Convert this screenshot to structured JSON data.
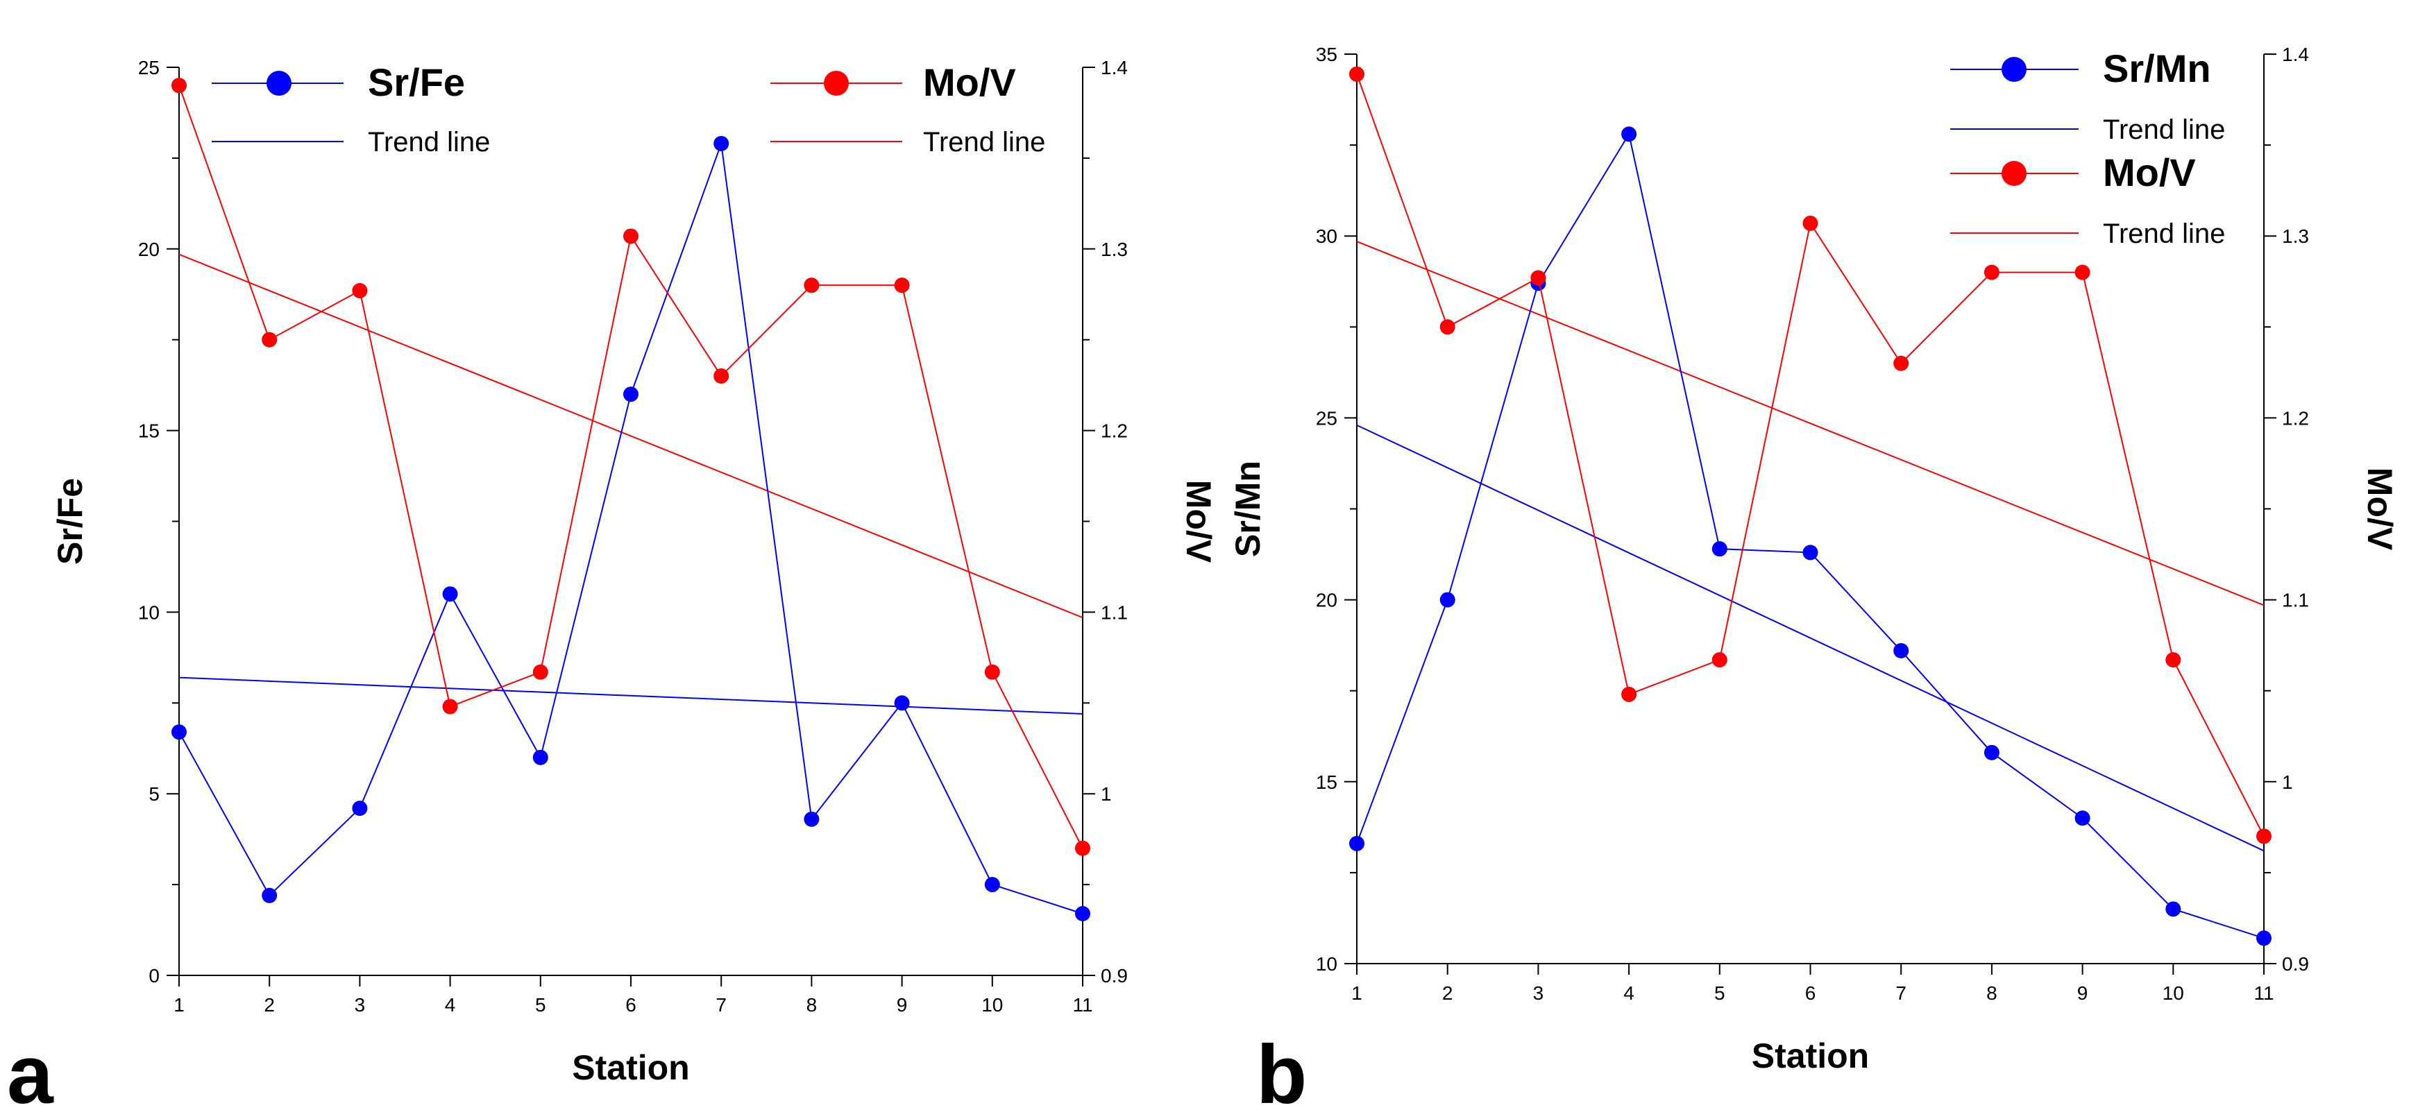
{
  "chart_data": [
    {
      "type": "line",
      "panel_label": "a",
      "x": [
        1,
        2,
        3,
        4,
        5,
        6,
        7,
        8,
        9,
        10,
        11
      ],
      "xlabel": "Station",
      "ylabel_left": "Sr/Fe",
      "ylabel_right": "Mo/V",
      "ylim_left": [
        0,
        25
      ],
      "ylim_right": [
        0.9,
        1.4
      ],
      "yticks_left": [
        0,
        5,
        10,
        15,
        20,
        25
      ],
      "yticks_right": [
        0.9,
        1,
        1.1,
        1.2,
        1.3,
        1.4
      ],
      "series": [
        {
          "name": "Sr/Fe",
          "axis": "left",
          "color": "#0000ff",
          "values": [
            6.7,
            2.2,
            4.6,
            10.5,
            6.0,
            16.0,
            22.9,
            4.3,
            7.5,
            2.5,
            1.7
          ]
        },
        {
          "name": "Mo/V",
          "axis": "right",
          "color": "#ff0000",
          "values": [
            1.39,
            1.25,
            1.277,
            1.048,
            1.067,
            1.307,
            1.23,
            1.28,
            1.28,
            1.067,
            0.97
          ]
        }
      ],
      "trend_lines": [
        {
          "series": "Sr/Fe",
          "axis": "left",
          "color": "#0000ff",
          "label": "Trend line",
          "start": 8.2,
          "end": 7.2
        },
        {
          "series": "Mo/V",
          "axis": "right",
          "color": "#ff0000",
          "label": "Trend line",
          "start": 1.297,
          "end": 1.097
        }
      ],
      "legend_groups": [
        {
          "series_label": "Sr/Fe",
          "trend_label": "Trend line",
          "color": "#0000ff"
        },
        {
          "series_label": "Mo/V",
          "trend_label": "Trend line",
          "color": "#ff0000"
        }
      ]
    },
    {
      "type": "line",
      "panel_label": "b",
      "x": [
        1,
        2,
        3,
        4,
        5,
        6,
        7,
        8,
        9,
        10,
        11
      ],
      "xlabel": "Station",
      "ylabel_left": "Sr/Mn",
      "ylabel_right": "Mo/V",
      "ylim_left": [
        10,
        35
      ],
      "ylim_right": [
        0.9,
        1.4
      ],
      "yticks_left": [
        10,
        15,
        20,
        25,
        30,
        35
      ],
      "yticks_right": [
        0.9,
        1,
        1.1,
        1.2,
        1.3,
        1.4
      ],
      "series": [
        {
          "name": "Sr/Mn",
          "axis": "left",
          "color": "#0000ff",
          "values": [
            13.3,
            20.0,
            28.7,
            32.8,
            21.4,
            21.3,
            18.6,
            15.8,
            14.0,
            11.5,
            10.7
          ]
        },
        {
          "name": "Mo/V",
          "axis": "right",
          "color": "#ff0000",
          "values": [
            1.389,
            1.25,
            1.277,
            1.048,
            1.067,
            1.307,
            1.23,
            1.28,
            1.28,
            1.067,
            0.97
          ]
        }
      ],
      "trend_lines": [
        {
          "series": "Sr/Mn",
          "axis": "left",
          "color": "#0000ff",
          "label": "Trend line",
          "start": 24.8,
          "end": 13.1
        },
        {
          "series": "Mo/V",
          "axis": "right",
          "color": "#ff0000",
          "label": "Trend line",
          "start": 1.297,
          "end": 1.097
        }
      ],
      "legend_groups": [
        {
          "series_label": "Sr/Mn",
          "trend_label": "Trend line",
          "color": "#0000ff"
        },
        {
          "series_label": "Mo/V",
          "trend_label": "Trend line",
          "color": "#ff0000"
        }
      ]
    }
  ]
}
